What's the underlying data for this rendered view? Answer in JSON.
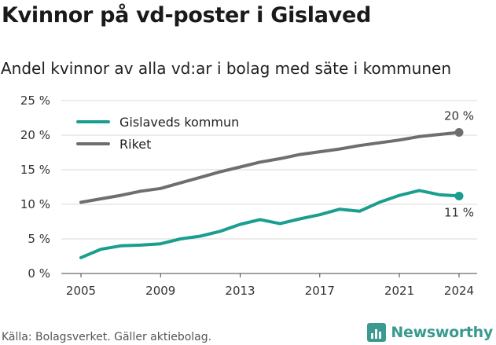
{
  "header": {
    "title": "Kvinnor på vd-poster i Gislaved",
    "subtitle": "Andel kvinnor av alla vd:ar i bolag med säte i kommunen"
  },
  "footer": {
    "source": "Källa: Bolagsverket. Gäller aktiebolag.",
    "brand": "Newsworthy"
  },
  "colors": {
    "gislaved": "#1a9e8f",
    "riket": "#6e6e6e",
    "grid": "#d9d9d9",
    "brand": "#3a9a8f"
  },
  "chart_data": {
    "type": "line",
    "title": "Kvinnor på vd-poster i Gislaved",
    "subtitle": "Andel kvinnor av alla vd:ar i bolag med säte i kommunen",
    "x": [
      2005,
      2006,
      2007,
      2008,
      2009,
      2010,
      2011,
      2012,
      2013,
      2014,
      2015,
      2016,
      2017,
      2018,
      2019,
      2020,
      2021,
      2022,
      2023,
      2024
    ],
    "xticks": [
      "2005",
      "2009",
      "2013",
      "2017",
      "2021",
      "2024"
    ],
    "yticks": [
      "0 %",
      "5 %",
      "10 %",
      "15 %",
      "20 %",
      "25 %"
    ],
    "ylim": [
      0,
      25
    ],
    "grid": true,
    "legend_position": "top-left",
    "series": [
      {
        "name": "Gislaveds kommun",
        "values": [
          2.3,
          3.5,
          4.0,
          4.1,
          4.3,
          5.0,
          5.4,
          6.1,
          7.1,
          7.8,
          7.2,
          7.9,
          8.5,
          9.3,
          9.0,
          10.3,
          11.3,
          12.0,
          11.4,
          11.2
        ],
        "end_label": "11 %"
      },
      {
        "name": "Riket",
        "values": [
          10.3,
          10.8,
          11.3,
          11.9,
          12.3,
          13.1,
          13.9,
          14.7,
          15.4,
          16.1,
          16.6,
          17.2,
          17.6,
          18.0,
          18.5,
          18.9,
          19.3,
          19.8,
          20.1,
          20.4
        ],
        "end_label": "20 %"
      }
    ]
  }
}
